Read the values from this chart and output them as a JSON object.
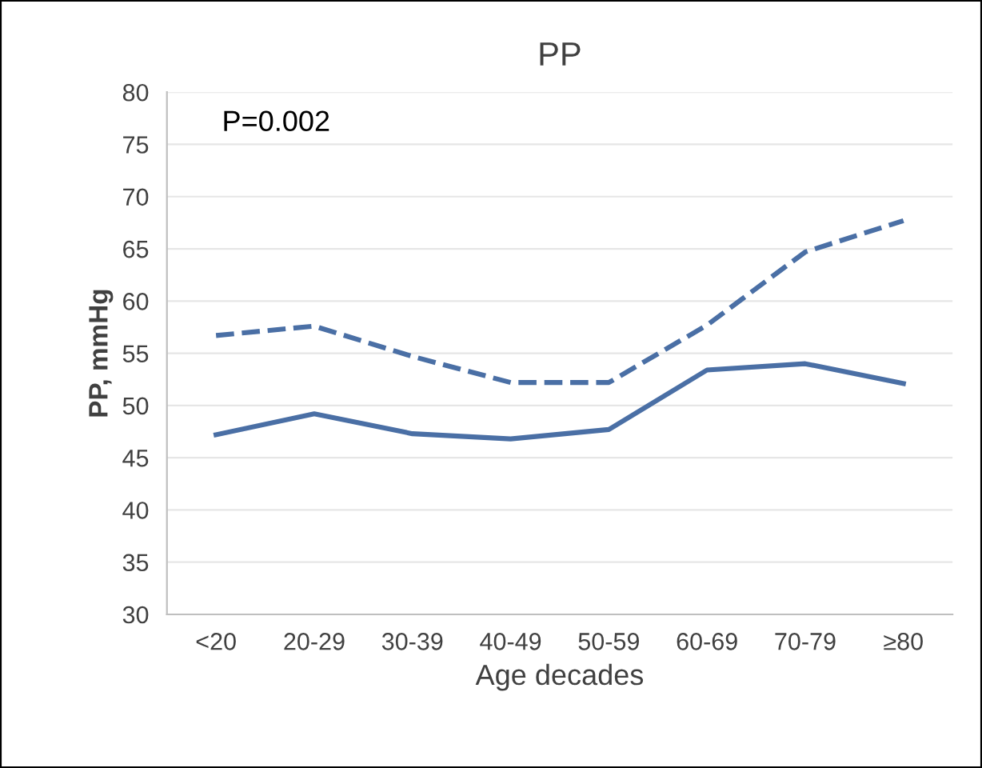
{
  "chart_data": {
    "type": "line",
    "title": "PP",
    "xlabel": "Age decades",
    "ylabel": "PP, mmHg",
    "categories": [
      "<20",
      "20-29",
      "30-39",
      "40-49",
      "50-59",
      "60-69",
      "70-79",
      "≥80"
    ],
    "series": [
      {
        "color": "#4a6fa5",
        "line_style": "dashed",
        "values": [
          56.7,
          57.6,
          54.7,
          52.2,
          52.2,
          57.7,
          64.7,
          67.7
        ]
      },
      {
        "color": "#4a6fa5",
        "line_style": "solid",
        "values": [
          47.2,
          49.2,
          47.3,
          46.8,
          47.7,
          53.4,
          54.0,
          52.1
        ]
      }
    ],
    "ylim": [
      30,
      80
    ],
    "yticks": [
      30,
      35,
      40,
      45,
      50,
      55,
      60,
      65,
      70,
      75,
      80
    ],
    "grid": "y",
    "marker": "none",
    "annotations": [
      "P=0.002"
    ]
  }
}
